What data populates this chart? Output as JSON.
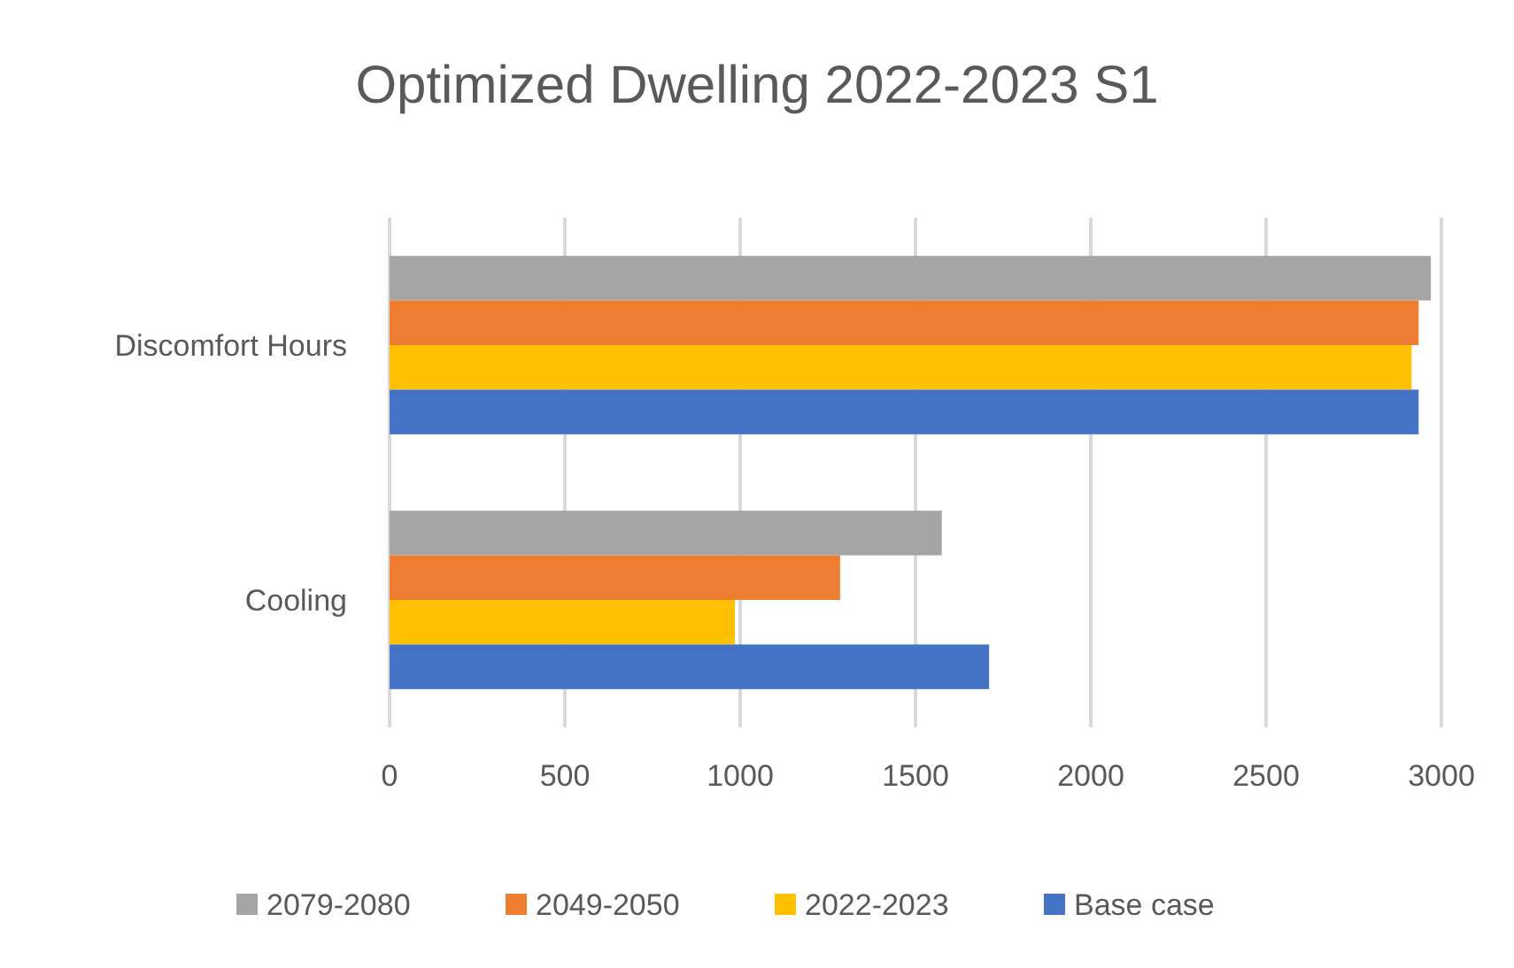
{
  "chart_data": {
    "type": "bar",
    "orientation": "horizontal",
    "title": "Optimized Dwelling 2022-2023 S1",
    "categories": [
      "Discomfort Hours",
      "Cooling"
    ],
    "series": [
      {
        "name": "2079-2080",
        "color": "#a5a5a5",
        "values": [
          2970,
          1575
        ]
      },
      {
        "name": "2049-2050",
        "color": "#ed7d31",
        "values": [
          2935,
          1285
        ]
      },
      {
        "name": "2022-2023",
        "color": "#ffc000",
        "values": [
          2915,
          985
        ]
      },
      {
        "name": "Base case",
        "color": "#4472c4",
        "values": [
          2935,
          1710
        ]
      }
    ],
    "xlim": [
      0,
      3000
    ],
    "xticks": [
      0,
      500,
      1000,
      1500,
      2000,
      2500,
      3000
    ],
    "grid": "x",
    "legend": "bottom"
  }
}
